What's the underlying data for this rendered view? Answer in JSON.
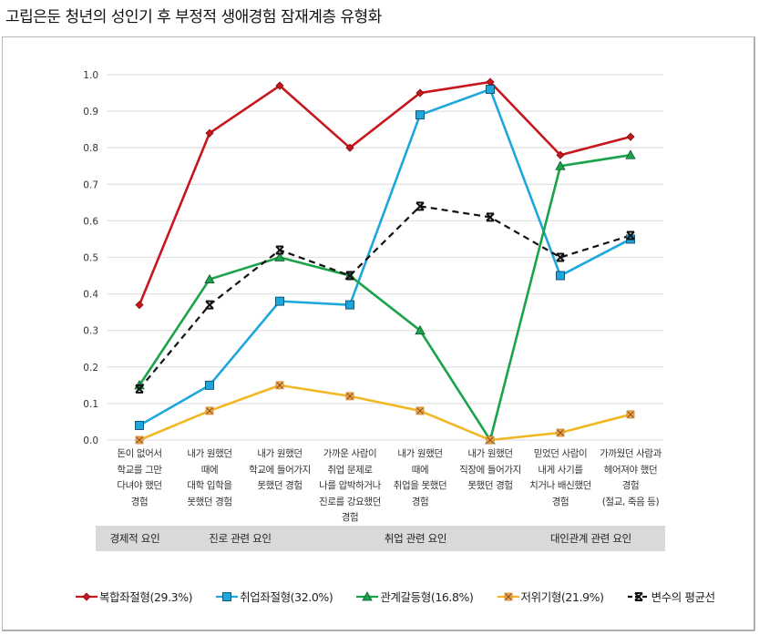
{
  "title": "고립은둔 청년의 성인기 후 부정적 생애경험 잠재계층 유형화",
  "chart_data": {
    "type": "line",
    "title": "고립은둔 청년의 성인기 후 부정적 생애경험 잠재계층 유형화",
    "xlabel": "",
    "ylabel": "",
    "ylim": [
      0,
      1.0
    ],
    "yticks": [
      "0.0",
      "0.1",
      "0.2",
      "0.3",
      "0.4",
      "0.5",
      "0.6",
      "0.7",
      "0.8",
      "0.9",
      "1.0"
    ],
    "grid": true,
    "legend_position": "bottom",
    "categories": [
      [
        "돈이 없어서",
        "학교를 그만",
        "다녀야 했던",
        "경험"
      ],
      [
        "내가 원했던",
        "때에",
        "대학 입학을",
        "못했던 경험"
      ],
      [
        "내가 원했던",
        "학교에 들어가지",
        "못했던 경험"
      ],
      [
        "가까운 사람이",
        "취업 문제로",
        "나를 압박하거나",
        "진로를 강요했던",
        "경험"
      ],
      [
        "내가 원했던",
        "때에",
        "취업을 못했던",
        "경험"
      ],
      [
        "내가 원했던",
        "직장에 들어가지",
        "못했던 경험"
      ],
      [
        "믿었던 사람이",
        "내게 사기를",
        "치거나 배신했던",
        "경험"
      ],
      [
        "가까웠던 사람과",
        "헤어져야 했던",
        "경험",
        "(절교, 죽음 등)"
      ]
    ],
    "groups": [
      {
        "label": "경제적 요인",
        "span": [
          0,
          0
        ]
      },
      {
        "label": "진로 관련 요인",
        "span": [
          1,
          2
        ]
      },
      {
        "label": "취업 관련 요인",
        "span": [
          3,
          5
        ]
      },
      {
        "label": "대인관계 관련 요인",
        "span": [
          6,
          7
        ]
      }
    ],
    "series": [
      {
        "name": "복합좌절형(29.3%)",
        "color": "#c8161d",
        "marker": "diamond",
        "dash": false,
        "values": [
          0.37,
          0.84,
          0.97,
          0.8,
          0.95,
          0.98,
          0.78,
          0.83
        ]
      },
      {
        "name": "취업좌절형(32.0%)",
        "color": "#1ea7dc",
        "marker": "square",
        "dash": false,
        "values": [
          0.04,
          0.15,
          0.38,
          0.37,
          0.89,
          0.96,
          0.45,
          0.55
        ]
      },
      {
        "name": "관계갈등형(16.8%)",
        "color": "#1aa34a",
        "marker": "triangle",
        "dash": false,
        "values": [
          0.15,
          0.44,
          0.5,
          0.45,
          0.3,
          0.0,
          0.75,
          0.78
        ]
      },
      {
        "name": "저위기형(21.9%)",
        "color": "#f2b824",
        "marker": "xsquare",
        "dash": false,
        "values": [
          0.0,
          0.08,
          0.15,
          0.12,
          0.08,
          0.0,
          0.02,
          0.07
        ]
      },
      {
        "name": "변수의 평균선",
        "color": "#111111",
        "marker": "star",
        "dash": true,
        "values": [
          0.14,
          0.37,
          0.52,
          0.45,
          0.64,
          0.61,
          0.5,
          0.56
        ]
      }
    ]
  }
}
